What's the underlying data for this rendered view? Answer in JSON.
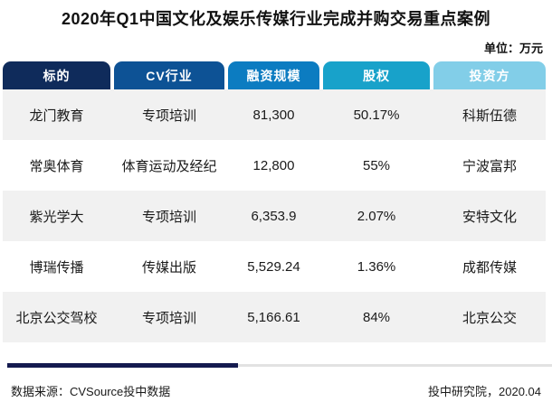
{
  "header": {
    "title": "2020年Q1中国文化及娱乐传媒行业完成并购交易重点案例",
    "unit_label": "单位：万元"
  },
  "table": {
    "columns": [
      {
        "label": "标的",
        "color": "#0f2b5b"
      },
      {
        "label": "CV行业",
        "color": "#0d5295"
      },
      {
        "label": "融资规模",
        "color": "#0c7cc1"
      },
      {
        "label": "股权",
        "color": "#18a2ca"
      },
      {
        "label": "投资方",
        "color": "#82cee8"
      }
    ],
    "zebra": {
      "odd": "#f1f1f1",
      "even": "#ffffff"
    },
    "rows": [
      [
        "龙门教育",
        "专项培训",
        "81,300",
        "50.17%",
        "科斯伍德"
      ],
      [
        "常奥体育",
        "体育运动及经纪",
        "12,800",
        "55%",
        "宁波富邦"
      ],
      [
        "紫光学大",
        "专项培训",
        "6,353.9",
        "2.07%",
        "安特文化"
      ],
      [
        "博瑞传播",
        "传媒出版",
        "5,529.24",
        "1.36%",
        "成都传媒"
      ],
      [
        "北京公交驾校",
        "专项培训",
        "5,166.61",
        "84%",
        "北京公交"
      ]
    ]
  },
  "footer": {
    "source": "数据来源：CVSource投中数据",
    "credit": "投中研究院，2020.04",
    "divider_navy_color": "#141a4f",
    "divider_gray_color": "#e2e2e2"
  },
  "chart_data": {
    "type": "table",
    "title": "2020年Q1中国文化及娱乐传媒行业完成并购交易重点案例",
    "unit": "万元",
    "columns": [
      "标的",
      "CV行业",
      "融资规模",
      "股权",
      "投资方"
    ],
    "rows": [
      [
        "龙门教育",
        "专项培训",
        81300,
        "50.17%",
        "科斯伍德"
      ],
      [
        "常奥体育",
        "体育运动及经纪",
        12800,
        "55%",
        "宁波富邦"
      ],
      [
        "紫光学大",
        "专项培训",
        6353.9,
        "2.07%",
        "安特文化"
      ],
      [
        "博瑞传播",
        "传媒出版",
        5529.24,
        "1.36%",
        "成都传媒"
      ],
      [
        "北京公交驾校",
        "专项培训",
        5166.61,
        "84%",
        "北京公交"
      ]
    ],
    "source": "数据来源：CVSource投中数据",
    "credit": "投中研究院，2020.04"
  }
}
